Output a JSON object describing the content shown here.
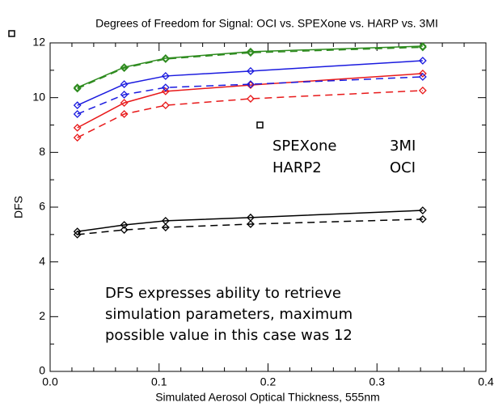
{
  "chart_data": {
    "type": "line",
    "title": "Degrees of Freedom for Signal: OCI vs. SPEXone vs. HARP vs. 3MI",
    "xlabel": "Simulated Aerosol Optical Thickness, 555nm",
    "ylabel": "DFS",
    "annotation": [
      "DFS expresses ability to retrieve",
      "simulation parameters, maximum",
      "possible value in this case was 12"
    ],
    "x": [
      0.025,
      0.068,
      0.106,
      0.184,
      0.342
    ],
    "xlim": [
      0,
      0.4
    ],
    "xticks": [
      {
        "value": 0,
        "label": "0.0"
      },
      0.1,
      0.2,
      0.3,
      0.4
    ],
    "ylim": [
      0,
      12
    ],
    "yticks": [
      0,
      2,
      4,
      6,
      8,
      10,
      12
    ],
    "series": [
      {
        "name": "SPEXone",
        "color": "#2e8b1f",
        "values": [
          10.37,
          11.11,
          11.44,
          11.68,
          11.88
        ]
      },
      {
        "name": "3MI",
        "color": "#1a1adf",
        "values": [
          9.72,
          10.49,
          10.79,
          10.97,
          11.35
        ]
      },
      {
        "name": "HARP2",
        "color": "#e8191a",
        "values": [
          8.9,
          9.81,
          10.23,
          10.46,
          10.88
        ]
      },
      {
        "name": "OCI",
        "color": "#000000",
        "values": [
          5.11,
          5.35,
          5.5,
          5.62,
          5.88
        ]
      },
      {
        "color": "#2e8b1f",
        "dashed": true,
        "values": [
          10.33,
          11.08,
          11.41,
          11.64,
          11.84
        ]
      },
      {
        "color": "#1a1adf",
        "dashed": true,
        "values": [
          9.4,
          10.11,
          10.37,
          10.49,
          10.76
        ]
      },
      {
        "color": "#e8191a",
        "dashed": true,
        "values": [
          8.54,
          9.4,
          9.72,
          9.96,
          10.26
        ]
      },
      {
        "color": "#000000",
        "dashed": true,
        "values": [
          5.0,
          5.17,
          5.26,
          5.38,
          5.56
        ]
      }
    ]
  }
}
